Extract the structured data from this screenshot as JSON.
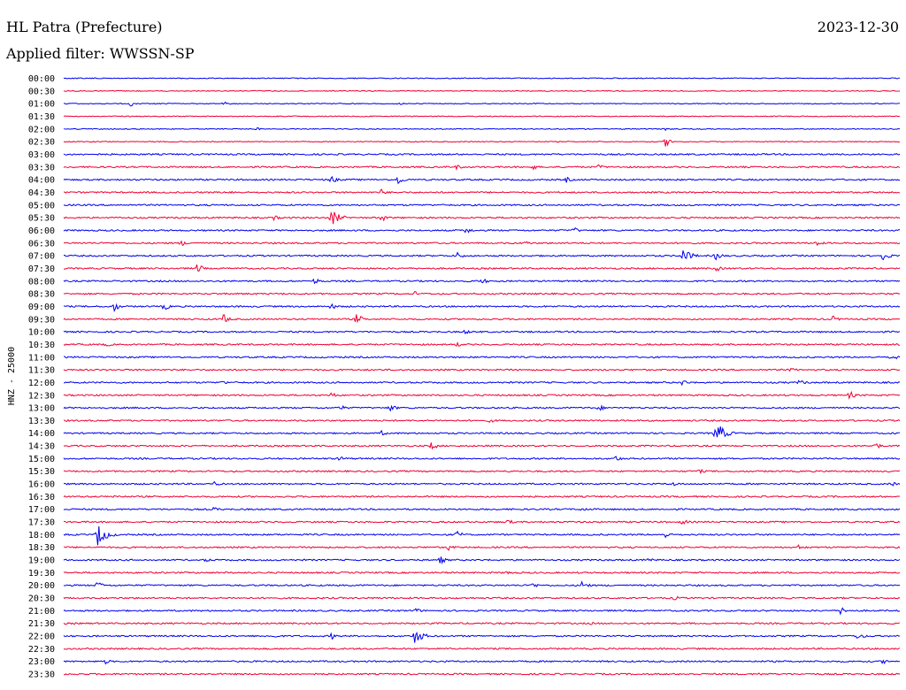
{
  "header": {
    "station": "HL Patra (Prefecture)",
    "date": "2023-12-30",
    "filter": "Applied filter: WWSSN-SP"
  },
  "chart_data": {
    "type": "line",
    "chart_kind": "helicorder",
    "ylabel": "HNZ - 25000",
    "trace_colors": [
      "#0000ee",
      "#ee0033"
    ],
    "rows": [
      {
        "label": "00:00",
        "events": []
      },
      {
        "label": "00:30",
        "events": []
      },
      {
        "label": "01:00",
        "events": [
          {
            "t": 0.08,
            "a": 4
          },
          {
            "t": 0.19,
            "a": 4
          },
          {
            "t": 0.4,
            "a": 3
          }
        ]
      },
      {
        "label": "01:30",
        "events": []
      },
      {
        "label": "02:00",
        "events": [
          {
            "t": 0.23,
            "a": 2
          },
          {
            "t": 0.72,
            "a": 2
          }
        ]
      },
      {
        "label": "02:30",
        "events": [
          {
            "t": 0.72,
            "a": 6
          }
        ]
      },
      {
        "label": "03:00",
        "events": [
          {
            "t": 0.83,
            "a": 2
          }
        ]
      },
      {
        "label": "03:30",
        "events": [
          {
            "t": 0.47,
            "a": 3
          },
          {
            "t": 0.56,
            "a": 4
          },
          {
            "t": 0.64,
            "a": 3
          }
        ]
      },
      {
        "label": "04:00",
        "events": [
          {
            "t": 0.32,
            "a": 5
          },
          {
            "t": 0.4,
            "a": 6
          },
          {
            "t": 0.6,
            "a": 4
          }
        ]
      },
      {
        "label": "04:30",
        "events": [
          {
            "t": 0.2,
            "a": 3
          },
          {
            "t": 0.38,
            "a": 4
          }
        ]
      },
      {
        "label": "05:00",
        "events": []
      },
      {
        "label": "05:30",
        "events": [
          {
            "t": 0.25,
            "a": 4
          },
          {
            "t": 0.32,
            "a": 10
          },
          {
            "t": 0.38,
            "a": 5
          }
        ]
      },
      {
        "label": "06:00",
        "events": [
          {
            "t": 0.48,
            "a": 5
          },
          {
            "t": 0.61,
            "a": 4
          }
        ]
      },
      {
        "label": "06:30",
        "events": [
          {
            "t": 0.14,
            "a": 4
          },
          {
            "t": 0.55,
            "a": 4
          },
          {
            "t": 0.9,
            "a": 4
          }
        ]
      },
      {
        "label": "07:00",
        "events": [
          {
            "t": 0.47,
            "a": 5
          },
          {
            "t": 0.74,
            "a": 9
          },
          {
            "t": 0.78,
            "a": 6
          },
          {
            "t": 0.98,
            "a": 7
          }
        ]
      },
      {
        "label": "07:30",
        "events": [
          {
            "t": 0.16,
            "a": 6
          },
          {
            "t": 0.78,
            "a": 4
          }
        ]
      },
      {
        "label": "08:00",
        "events": [
          {
            "t": 0.3,
            "a": 4
          },
          {
            "t": 0.5,
            "a": 4
          }
        ]
      },
      {
        "label": "08:30",
        "events": [
          {
            "t": 0.42,
            "a": 3
          }
        ]
      },
      {
        "label": "09:00",
        "events": [
          {
            "t": 0.06,
            "a": 6
          },
          {
            "t": 0.12,
            "a": 5
          },
          {
            "t": 0.32,
            "a": 4
          }
        ]
      },
      {
        "label": "09:30",
        "events": [
          {
            "t": 0.19,
            "a": 7
          },
          {
            "t": 0.35,
            "a": 7
          },
          {
            "t": 0.92,
            "a": 4
          }
        ]
      },
      {
        "label": "10:00",
        "events": [
          {
            "t": 0.48,
            "a": 3
          }
        ]
      },
      {
        "label": "10:30",
        "events": [
          {
            "t": 0.05,
            "a": 3
          },
          {
            "t": 0.47,
            "a": 3
          }
        ]
      },
      {
        "label": "11:00",
        "events": [
          {
            "t": 0.99,
            "a": 5
          }
        ]
      },
      {
        "label": "11:30",
        "events": [
          {
            "t": 0.87,
            "a": 3
          }
        ]
      },
      {
        "label": "12:00",
        "events": [
          {
            "t": 0.19,
            "a": 3
          },
          {
            "t": 0.74,
            "a": 4
          },
          {
            "t": 0.88,
            "a": 4
          }
        ]
      },
      {
        "label": "12:30",
        "events": [
          {
            "t": 0.32,
            "a": 4
          },
          {
            "t": 0.94,
            "a": 5
          }
        ]
      },
      {
        "label": "13:00",
        "events": [
          {
            "t": 0.33,
            "a": 4
          },
          {
            "t": 0.39,
            "a": 5
          },
          {
            "t": 0.64,
            "a": 4
          }
        ]
      },
      {
        "label": "13:30",
        "events": [
          {
            "t": 0.51,
            "a": 3
          }
        ]
      },
      {
        "label": "14:00",
        "events": [
          {
            "t": 0.78,
            "a": 14
          },
          {
            "t": 0.38,
            "a": 3
          }
        ]
      },
      {
        "label": "14:30",
        "events": [
          {
            "t": 0.44,
            "a": 5
          },
          {
            "t": 0.97,
            "a": 5
          }
        ]
      },
      {
        "label": "15:00",
        "events": [
          {
            "t": 0.33,
            "a": 4
          },
          {
            "t": 0.66,
            "a": 4
          }
        ]
      },
      {
        "label": "15:30",
        "events": [
          {
            "t": 0.76,
            "a": 3
          }
        ]
      },
      {
        "label": "16:00",
        "events": [
          {
            "t": 0.18,
            "a": 3
          },
          {
            "t": 0.73,
            "a": 3
          },
          {
            "t": 0.99,
            "a": 3
          }
        ]
      },
      {
        "label": "16:30",
        "events": [
          {
            "t": 0.06,
            "a": 3
          }
        ]
      },
      {
        "label": "17:00",
        "events": [
          {
            "t": 0.18,
            "a": 3
          },
          {
            "t": 0.62,
            "a": 3
          }
        ]
      },
      {
        "label": "17:30",
        "events": [
          {
            "t": 0.53,
            "a": 4
          },
          {
            "t": 0.74,
            "a": 4
          }
        ]
      },
      {
        "label": "18:00",
        "events": [
          {
            "t": 0.04,
            "a": 14
          },
          {
            "t": 0.47,
            "a": 5
          },
          {
            "t": 0.72,
            "a": 4
          }
        ]
      },
      {
        "label": "18:30",
        "events": [
          {
            "t": 0.46,
            "a": 4
          },
          {
            "t": 0.88,
            "a": 4
          }
        ]
      },
      {
        "label": "19:00",
        "events": [
          {
            "t": 0.17,
            "a": 3
          },
          {
            "t": 0.45,
            "a": 5
          },
          {
            "t": 0.7,
            "a": 3
          }
        ]
      },
      {
        "label": "19:30",
        "events": [
          {
            "t": 0.53,
            "a": 3
          }
        ]
      },
      {
        "label": "20:00",
        "events": [
          {
            "t": 0.04,
            "a": 5
          },
          {
            "t": 0.56,
            "a": 4
          },
          {
            "t": 0.62,
            "a": 6
          }
        ]
      },
      {
        "label": "20:30",
        "events": [
          {
            "t": 0.73,
            "a": 3
          }
        ]
      },
      {
        "label": "21:00",
        "events": [
          {
            "t": 0.42,
            "a": 4
          },
          {
            "t": 0.93,
            "a": 6
          }
        ]
      },
      {
        "label": "21:30",
        "events": [
          {
            "t": 0.63,
            "a": 2
          }
        ]
      },
      {
        "label": "22:00",
        "events": [
          {
            "t": 0.25,
            "a": 3
          },
          {
            "t": 0.32,
            "a": 4
          },
          {
            "t": 0.42,
            "a": 9
          },
          {
            "t": 0.95,
            "a": 5
          }
        ]
      },
      {
        "label": "22:30",
        "events": []
      },
      {
        "label": "23:00",
        "events": [
          {
            "t": 0.05,
            "a": 3
          },
          {
            "t": 0.98,
            "a": 3
          }
        ]
      },
      {
        "label": "23:30",
        "events": [
          {
            "t": 0.83,
            "a": 2
          }
        ]
      }
    ]
  }
}
